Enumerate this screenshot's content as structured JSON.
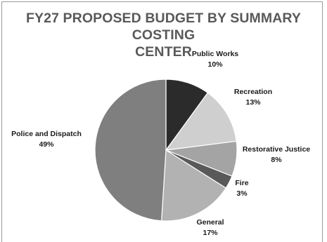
{
  "chart_data": {
    "type": "pie",
    "title_lines": [
      "FY27 PROPOSED BUDGET BY SUMMARY COSTING",
      "CENTER"
    ],
    "slices": [
      {
        "label": "Public Works",
        "value": 10,
        "pct_label": "10%",
        "color": "#2b2b2b"
      },
      {
        "label": "Recreation",
        "value": 13,
        "pct_label": "13%",
        "color": "#cfcfcf"
      },
      {
        "label": "Restorative Justice",
        "value": 8,
        "pct_label": "8%",
        "color": "#a4a4a4"
      },
      {
        "label": "Fire",
        "value": 3,
        "pct_label": "3%",
        "color": "#595959"
      },
      {
        "label": "General",
        "value": 17,
        "pct_label": "17%",
        "color": "#b2b2b2"
      },
      {
        "label": "Police and Dispatch",
        "value": 49,
        "pct_label": "49%",
        "color": "#7f7f7f"
      }
    ],
    "start_angle_deg": 0,
    "direction": "clockwise"
  }
}
